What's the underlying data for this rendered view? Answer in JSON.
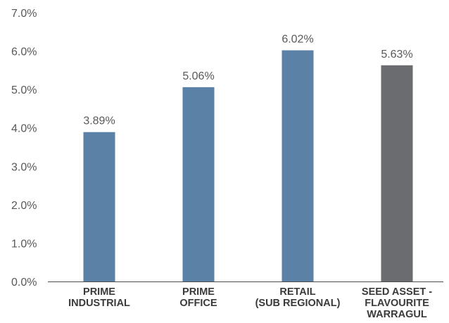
{
  "chart_data": {
    "type": "bar",
    "categories": [
      [
        "PRIME",
        "INDUSTRIAL"
      ],
      [
        "PRIME",
        "OFFICE"
      ],
      [
        "RETAIL",
        "(SUB REGIONAL)"
      ],
      [
        "SEED ASSET -",
        "FLAVOURITE",
        "WARRAGUL"
      ]
    ],
    "values": [
      3.89,
      5.06,
      6.02,
      5.63
    ],
    "data_labels": [
      "3.89%",
      "5.06%",
      "6.02%",
      "5.63%"
    ],
    "bar_colors": [
      "#5b82a6",
      "#5b82a6",
      "#5b82a6",
      "#6b6c70"
    ],
    "y_ticks": [
      0,
      1,
      2,
      3,
      4,
      5,
      6,
      7
    ],
    "y_tick_labels": [
      "0.0%",
      "1.0%",
      "2.0%",
      "3.0%",
      "4.0%",
      "5.0%",
      "6.0%",
      "7.0%"
    ],
    "ylim": [
      0,
      7
    ],
    "title": "",
    "xlabel": "",
    "ylabel": "",
    "grid": false,
    "legend": "none"
  }
}
